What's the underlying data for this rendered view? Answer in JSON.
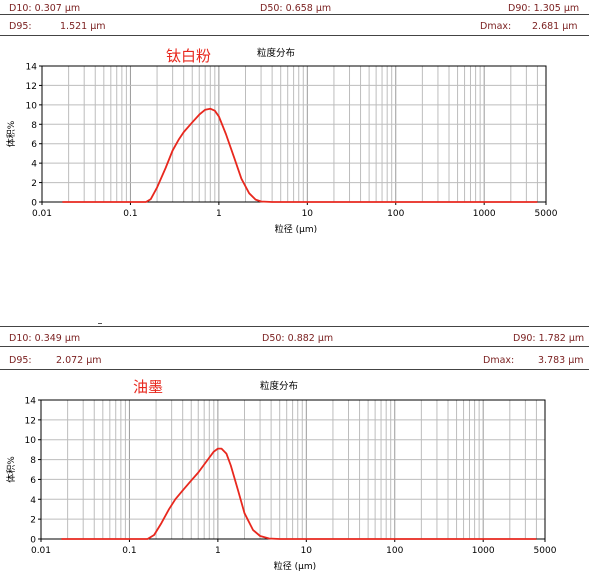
{
  "panels": [
    {
      "stats": {
        "d10": "D10: 0.307  µm",
        "d50": "D50: 0.658  µm",
        "d90": "D90: 1.305  µm",
        "d95_label": "D95:",
        "d95_value": "1.521  µm",
        "dmax_label": "Dmax:",
        "dmax_value": "2.681  µm"
      },
      "sample_name": "钛白粉",
      "chart_title": "粒度分布"
    },
    {
      "stats": {
        "d10": "D10: 0.349  µm",
        "d50": "D50: 0.882  µm",
        "d90": "D90: 1.782  µm",
        "d95_label": "D95:",
        "d95_value": "2.072  µm",
        "dmax_label": "Dmax:",
        "dmax_value": "3.783  µm"
      },
      "sample_name": "油墨",
      "chart_title": "粒度分布"
    }
  ],
  "chart_data": [
    {
      "type": "line",
      "title": "粒度分布",
      "annotation": "钛白粉",
      "xlabel": "粒径 (µm)",
      "ylabel": "体积%",
      "x_scale": "log",
      "xlim": [
        0.01,
        5000
      ],
      "ylim": [
        0,
        14
      ],
      "x_ticks": [
        "0.01",
        "0.1",
        "1",
        "10",
        "100",
        "1000",
        "5000"
      ],
      "y_ticks": [
        "0",
        "2",
        "4",
        "6",
        "8",
        "10",
        "12",
        "14"
      ],
      "grid": true,
      "line_color": "#e8281e",
      "series": [
        {
          "x": [
            0.017,
            0.1,
            0.15,
            0.17,
            0.2,
            0.25,
            0.3,
            0.35,
            0.4,
            0.5,
            0.6,
            0.7,
            0.8,
            0.9,
            1.0,
            1.2,
            1.5,
            1.8,
            2.2,
            2.6,
            3.0,
            4,
            10,
            100,
            1000,
            4000
          ],
          "y": [
            0,
            0,
            0,
            0.3,
            1.5,
            3.5,
            5.3,
            6.4,
            7.2,
            8.2,
            9.0,
            9.5,
            9.6,
            9.4,
            8.8,
            7.0,
            4.5,
            2.4,
            0.9,
            0.25,
            0.05,
            0,
            0,
            0,
            0,
            0
          ]
        }
      ]
    },
    {
      "type": "line",
      "title": "粒度分布",
      "annotation": "油墨",
      "xlabel": "粒径 (µm)",
      "ylabel": "体积%",
      "x_scale": "log",
      "xlim": [
        0.01,
        5000
      ],
      "ylim": [
        0,
        14
      ],
      "x_ticks": [
        "0.01",
        "0.1",
        "1",
        "10",
        "100",
        "1000",
        "5000"
      ],
      "y_ticks": [
        "0",
        "2",
        "4",
        "6",
        "8",
        "10",
        "12",
        "14"
      ],
      "grid": true,
      "line_color": "#e8281e",
      "series": [
        {
          "x": [
            0.017,
            0.12,
            0.16,
            0.19,
            0.23,
            0.28,
            0.33,
            0.4,
            0.5,
            0.6,
            0.7,
            0.8,
            0.9,
            1.0,
            1.1,
            1.25,
            1.4,
            1.7,
            2.0,
            2.5,
            3.0,
            3.8,
            5,
            10,
            100,
            1000,
            4000
          ],
          "y": [
            0,
            0,
            0,
            0.4,
            1.6,
            3.0,
            4.0,
            4.9,
            5.9,
            6.7,
            7.5,
            8.2,
            8.8,
            9.1,
            9.1,
            8.6,
            7.4,
            4.8,
            2.6,
            0.9,
            0.3,
            0.05,
            0,
            0,
            0,
            0,
            0
          ]
        }
      ]
    }
  ]
}
